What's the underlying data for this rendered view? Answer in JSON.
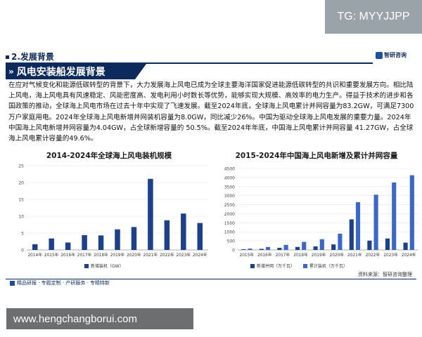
{
  "tg_badge": "TG: MYYJJPP",
  "section": {
    "title": "2.发展背景",
    "logo_text": "智研咨询"
  },
  "banner": {
    "title": "风电安装船发展背景"
  },
  "paragraph": "在应对气候变化和能源低碳转型的背景下，大力发展海上风电已成为全球主要海洋国家促进能源低碳转型的共识和重要发展方向。相比陆上风电，海上风电具有风速稳定、风能密度高、发电利用小时数长等优势，能够实现大规模、高效率的电力生产。得益于技术的进步和各国政策的推动，全球海上风电市场在过去十年中实现了飞速发展。截至2024年底，全球海上风电累计并网容量为83.2GW，可满足7300万户家庭用电。2024年全球海上风电新增并网装机容量为8.0GW，同比减少26%。中国为驱动全球海上风电发展的重要力量。2024年中国海上风电新增并网容量为4.04GW，占全球新增容量的 50.5%。截至2024年年底，中国海上风电累计并网容量 41.27GW，占全球海上风电累计容量的49.6%。",
  "chart_data": [
    {
      "type": "bar",
      "title": "2014-2024年全球海上风电装机规模",
      "categories": [
        "2014年",
        "2015年",
        "2016年",
        "2017年",
        "2018年",
        "2019年",
        "2020年",
        "2021年",
        "2022年",
        "2023年",
        "2024年"
      ],
      "series": [
        {
          "name": "新增装机（GW）",
          "values": [
            1.7,
            3.4,
            2.2,
            4.4,
            4.3,
            6.1,
            6.8,
            21.1,
            8.8,
            10.8,
            8.0
          ]
        }
      ],
      "ylim": [
        0,
        25
      ],
      "yticks": [
        0,
        5,
        10,
        15,
        20,
        25
      ],
      "legend": "bottom-left",
      "color": "#1e3f8a"
    },
    {
      "type": "bar",
      "title": "2015-2024年中国海上风电新增及累计并网容量",
      "categories": [
        "2015年",
        "2016年",
        "2017年",
        "2018年",
        "2019年",
        "2020年",
        "2021年",
        "2022年",
        "2023年",
        "2024年"
      ],
      "series": [
        {
          "name": "新增并网（万千瓦）",
          "values": [
            36,
            59,
            117,
            165,
            198,
            306,
            1690,
            516,
            633,
            404
          ],
          "color": "#1e3f8a"
        },
        {
          "name": "累计装机（万千瓦）",
          "values": [
            75,
            163,
            280,
            445,
            593,
            899,
            2639,
            3051,
            3729,
            4127
          ],
          "color": "#3b68c4"
        }
      ],
      "ylim": [
        0,
        4500
      ],
      "yticks": [
        0,
        500,
        1000,
        1500,
        2000,
        2500,
        3000,
        3500,
        4000,
        4500
      ],
      "legend": "bottom"
    }
  ],
  "footer": {
    "left": "精品研报 · 专题定制 · 产研服务 · 专精特新",
    "source": "资料来源：智研咨询整理"
  },
  "url_bar": "www.hengchangborui.com"
}
